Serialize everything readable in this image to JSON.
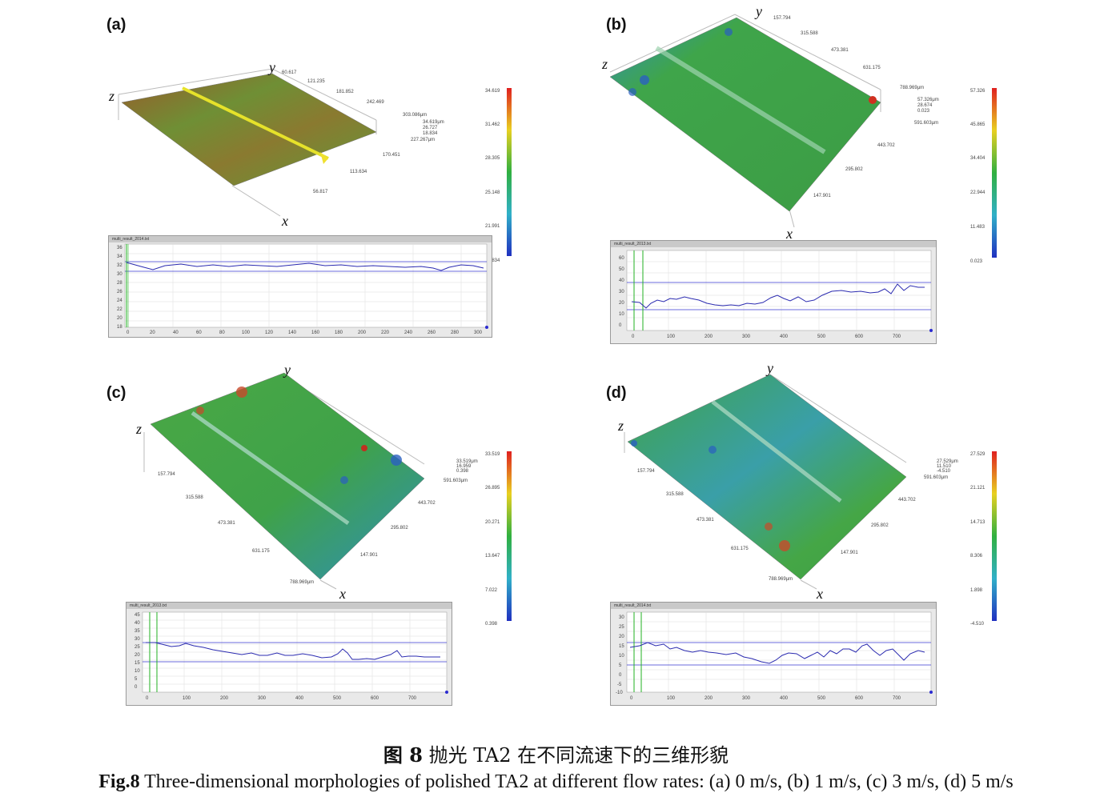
{
  "panels": [
    {
      "label": "(a)",
      "axes": {
        "x": "x",
        "y": "y",
        "z": "z"
      },
      "y_ticks": [
        "60.617",
        "121.235",
        "181.852",
        "242.469",
        "303.086μm"
      ],
      "x_ticks": [
        "56.817",
        "113.634",
        "170.451",
        "227.267μm"
      ],
      "corner_values": [
        "34.619μm",
        "26.727",
        "18.834"
      ],
      "colorbar_ticks": [
        "34.619",
        "31.462",
        "28.305",
        "25.148",
        "21.991",
        "18.834"
      ],
      "profile_title": "multi_result_2014.txt",
      "profile_y_ticks": [
        "36",
        "34",
        "32",
        "30",
        "28",
        "26",
        "24",
        "22",
        "20",
        "18"
      ],
      "profile_x_ticks": [
        "0",
        "20",
        "40",
        "60",
        "80",
        "100",
        "120",
        "140",
        "160",
        "180",
        "200",
        "220",
        "240",
        "260",
        "280",
        "300"
      ]
    },
    {
      "label": "(b)",
      "axes": {
        "x": "x",
        "y": "y",
        "z": "z"
      },
      "y_ticks": [
        "157.794",
        "315.588",
        "473.381",
        "631.175",
        "788.969μm"
      ],
      "x_ticks": [
        "147.901",
        "295.802",
        "443.702",
        "591.603μm"
      ],
      "corner_values": [
        "57.326μm",
        "28.674",
        "0.023"
      ],
      "colorbar_ticks": [
        "57.326",
        "45.865",
        "34.404",
        "22.944",
        "11.483",
        "0.023"
      ],
      "profile_title": "multi_result_2013.txt",
      "profile_y_ticks": [
        "60",
        "50",
        "40",
        "30",
        "20",
        "10",
        "0"
      ],
      "profile_x_ticks": [
        "0",
        "100",
        "200",
        "300",
        "400",
        "500",
        "600",
        "700"
      ]
    },
    {
      "label": "(c)",
      "axes": {
        "x": "x",
        "y": "y",
        "z": "z"
      },
      "y_ticks": [
        "157.794",
        "315.588",
        "473.381",
        "631.175",
        "788.969μm"
      ],
      "x_ticks": [
        "147.901",
        "295.802",
        "443.702",
        "591.603μm"
      ],
      "corner_values": [
        "33.519μm",
        "16.959",
        "0.398"
      ],
      "colorbar_ticks": [
        "33.519",
        "26.895",
        "20.271",
        "13.647",
        "7.022",
        "0.398"
      ],
      "profile_title": "multi_result_2013.txt",
      "profile_y_ticks": [
        "45",
        "40",
        "35",
        "30",
        "25",
        "20",
        "15",
        "10",
        "5",
        "0"
      ],
      "profile_x_ticks": [
        "0",
        "100",
        "200",
        "300",
        "400",
        "500",
        "600",
        "700"
      ]
    },
    {
      "label": "(d)",
      "axes": {
        "x": "x",
        "y": "y",
        "z": "z"
      },
      "y_ticks": [
        "157.794",
        "315.588",
        "473.381",
        "631.175",
        "788.969μm"
      ],
      "x_ticks": [
        "147.901",
        "295.802",
        "443.702",
        "591.603μm"
      ],
      "corner_values": [
        "27.529μm",
        "11.510",
        "-4.510"
      ],
      "colorbar_ticks": [
        "27.529",
        "21.121",
        "14.713",
        "8.306",
        "1.898",
        "-4.510"
      ],
      "profile_title": "multi_result_2014.txt",
      "profile_y_ticks": [
        "30",
        "25",
        "20",
        "15",
        "10",
        "5",
        "0",
        "-5",
        "-10"
      ],
      "profile_x_ticks": [
        "0",
        "100",
        "200",
        "300",
        "400",
        "500",
        "600",
        "700"
      ]
    }
  ],
  "caption": {
    "cn_prefix": "图 8",
    "cn_text": " 抛光 TA2 在不同流速下的三维形貌",
    "en_prefix": "Fig.8",
    "en_text": " Three-dimensional morphologies of polished TA2 at different flow rates: (a) 0 m/s, (b) 1 m/s, (c) 3 m/s, (d) 5 m/s"
  },
  "colors": {
    "surface_a": "#8a7a35",
    "surface_green": "#3fa34a",
    "profile_line": "#2b2bb0",
    "guide_line": "#3a3ad0",
    "marker_line": "#22b022"
  }
}
